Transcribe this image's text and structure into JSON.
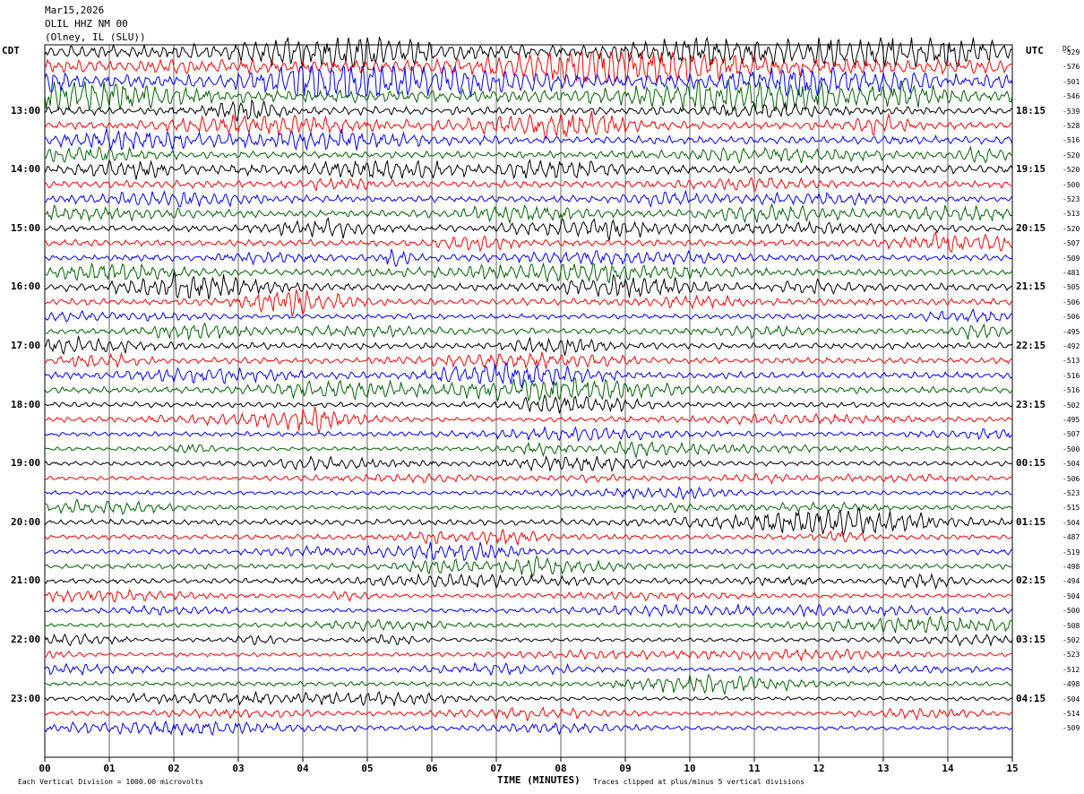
{
  "header": {
    "date": "Mar15,2026",
    "station": "OLIL HHZ NM 00",
    "location": "(Olney, IL (SLU))"
  },
  "left_timezone": "CDT",
  "right_timezone": "UTC",
  "dc_header": "DC",
  "chart_data": {
    "type": "line",
    "title": "",
    "xlabel": "TIME (MINUTES)",
    "x_ticks": [
      "00",
      "01",
      "02",
      "03",
      "04",
      "05",
      "06",
      "07",
      "08",
      "09",
      "10",
      "11",
      "12",
      "13",
      "14",
      "15"
    ],
    "xlim": [
      0,
      15
    ],
    "rows_per_hour": 4,
    "left_hour_labels": [
      "13:00",
      "14:00",
      "15:00",
      "16:00",
      "17:00",
      "18:00",
      "19:00",
      "20:00",
      "21:00",
      "22:00",
      "23:00"
    ],
    "right_hour_labels": [
      "18:15",
      "19:15",
      "20:15",
      "21:15",
      "22:15",
      "23:15",
      "00:15",
      "01:15",
      "02:15",
      "03:15",
      "04:15"
    ],
    "trace_colors": [
      "#000000",
      "#ff0000",
      "#0000ff",
      "#006400"
    ],
    "dc_offsets": [
      "-529",
      "-576",
      "-501",
      "-546",
      "-539",
      "-528",
      "-516",
      "-520",
      "-520",
      "-500",
      "-523",
      "-513",
      "-520",
      "-507",
      "-509",
      "-481",
      "-505",
      "-506",
      "-506",
      "-495",
      "-492",
      "-513",
      "-516",
      "-516",
      "-502",
      "-495",
      "-507",
      "-500",
      "-504",
      "-506",
      "-523",
      "-515",
      "-504",
      "-487",
      "-519",
      "-498",
      "-494",
      "-504",
      "-500",
      "-508",
      "-502",
      "-523",
      "-512",
      "-498",
      "-504",
      "-514",
      "-509"
    ],
    "trace_amplitude_divisions": [
      2.0,
      2.2,
      1.9,
      1.8,
      1.2,
      1.1,
      1.2,
      1.0,
      1.3,
      1.1,
      1.0,
      1.0,
      1.0,
      1.0,
      0.9,
      1.0,
      1.1,
      1.0,
      0.8,
      0.9,
      1.0,
      0.9,
      1.0,
      1.0,
      0.8,
      0.7,
      0.7,
      0.6,
      0.7,
      0.6,
      0.6,
      0.6,
      0.9,
      0.8,
      0.8,
      0.8,
      0.8,
      0.6,
      0.6,
      0.6,
      0.6,
      0.6,
      0.6,
      0.7,
      0.6,
      0.6,
      0.6
    ]
  },
  "footer": {
    "scale_note": "Each Vertical Division = 1000.00 microvolts",
    "clip_note": "Traces clipped at plus/minus 5 vertical divisions"
  }
}
